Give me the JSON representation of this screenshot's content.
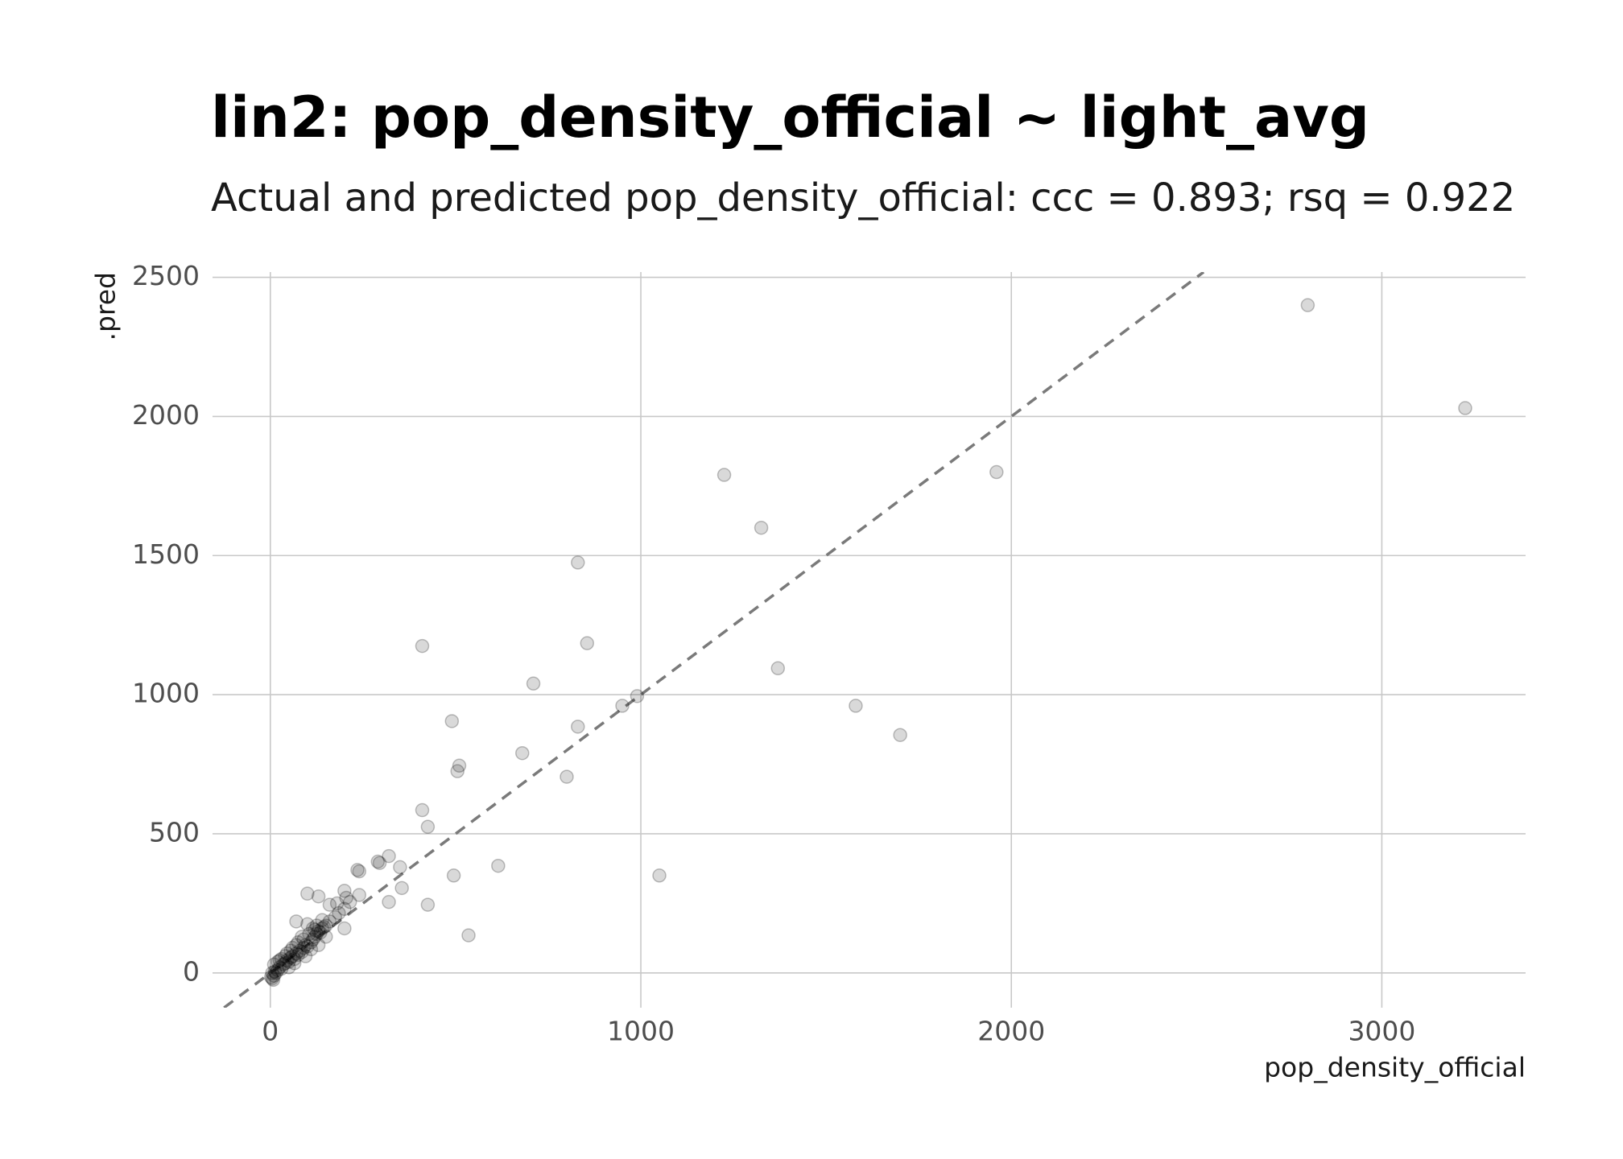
{
  "chart_data": {
    "type": "scatter",
    "title": "lin2: pop_density_official ~ light_avg",
    "subtitle": "Actual and predicted pop_density_official: ccc = 0.893; rsq = 0.922",
    "x_label": "pop_density_official",
    "y_label": ".pred",
    "xlim": [
      -156,
      3388
    ],
    "ylim": [
      -125,
      2519
    ],
    "xticks": [
      0,
      1000,
      2000,
      3000
    ],
    "yticks": [
      0,
      500,
      1000,
      1500,
      2000,
      2500
    ],
    "grid": true,
    "identity_line": true,
    "color": "#000000",
    "alpha": 0.15,
    "series": [
      {
        "name": "pred",
        "x": [
          2800,
          3225,
          1960,
          1225,
          1325,
          830,
          855,
          410,
          1370,
          710,
          990,
          950,
          1580,
          490,
          830,
          1700,
          680,
          510,
          505,
          800,
          410,
          425,
          320,
          290,
          295,
          350,
          235,
          240,
          615,
          495,
          1050,
          355,
          320,
          425,
          535,
          200,
          240,
          205,
          180,
          200,
          160,
          200,
          100,
          130,
          70,
          100,
          140,
          120,
          150,
          5,
          10,
          15,
          20,
          25,
          30,
          35,
          40,
          45,
          50,
          55,
          60,
          65,
          70,
          75,
          80,
          85,
          90,
          95,
          100,
          110,
          115,
          120,
          125,
          130,
          135,
          140,
          145,
          30,
          45,
          60,
          75,
          85,
          50,
          65,
          20,
          10,
          5,
          8,
          2,
          12,
          25,
          40,
          55,
          70,
          90,
          105,
          115,
          125,
          95,
          110,
          130,
          150,
          160,
          175,
          185,
          215
        ],
        "values": [
          2400,
          2030,
          1800,
          1790,
          1600,
          1475,
          1185,
          1175,
          1095,
          1040,
          995,
          960,
          960,
          905,
          885,
          855,
          790,
          745,
          725,
          705,
          585,
          525,
          420,
          400,
          395,
          380,
          370,
          365,
          385,
          350,
          350,
          305,
          255,
          245,
          135,
          295,
          280,
          270,
          250,
          230,
          245,
          160,
          285,
          275,
          185,
          175,
          190,
          155,
          170,
          -20,
          -10,
          0,
          10,
          20,
          15,
          30,
          35,
          45,
          40,
          55,
          60,
          50,
          70,
          65,
          80,
          75,
          90,
          100,
          95,
          110,
          120,
          130,
          140,
          150,
          145,
          160,
          165,
          50,
          70,
          90,
          110,
          130,
          20,
          35,
          40,
          30,
          0,
          -25,
          -15,
          5,
          45,
          60,
          80,
          100,
          120,
          140,
          160,
          170,
          60,
          85,
          100,
          130,
          185,
          200,
          215,
          255
        ]
      }
    ]
  }
}
